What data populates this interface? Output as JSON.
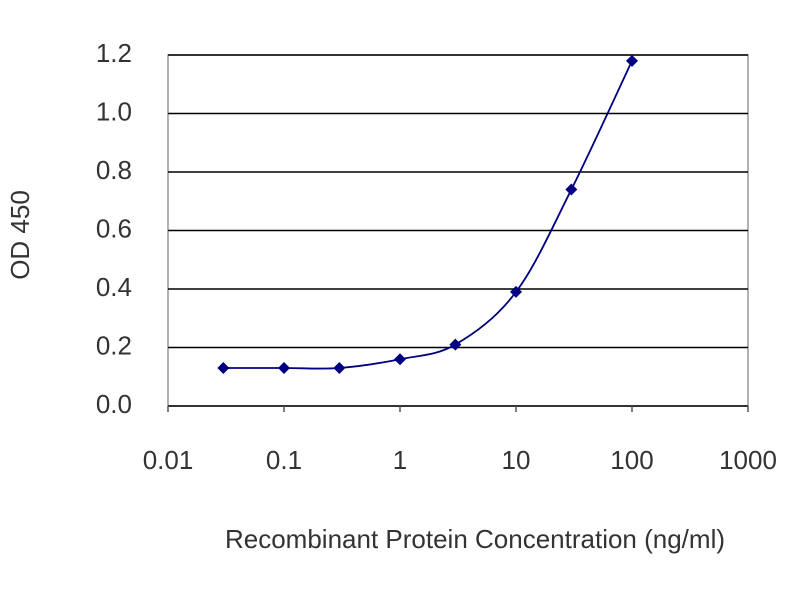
{
  "chart_data": {
    "type": "line",
    "x_label": "Recombinant Protein Concentration (ng/ml)",
    "y_label": "OD 450",
    "x_scale": "log",
    "x": [
      0.03,
      0.1,
      0.3,
      1,
      3,
      10,
      30,
      100
    ],
    "series": [
      {
        "color": "#000080",
        "values": [
          0.13,
          0.13,
          0.13,
          0.16,
          0.21,
          0.39,
          0.74,
          1.18
        ]
      }
    ],
    "xlim": [
      0.01,
      1000
    ],
    "xticks": [
      0.01,
      0.1,
      1,
      10,
      100,
      1000
    ],
    "ylim": [
      0,
      1.2
    ],
    "yticks": [
      {
        "value": 0,
        "label": "0.0"
      },
      0.2,
      0.4,
      0.6,
      0.8,
      {
        "value": 1,
        "label": "1.0"
      },
      1.2
    ],
    "grid": true
  }
}
